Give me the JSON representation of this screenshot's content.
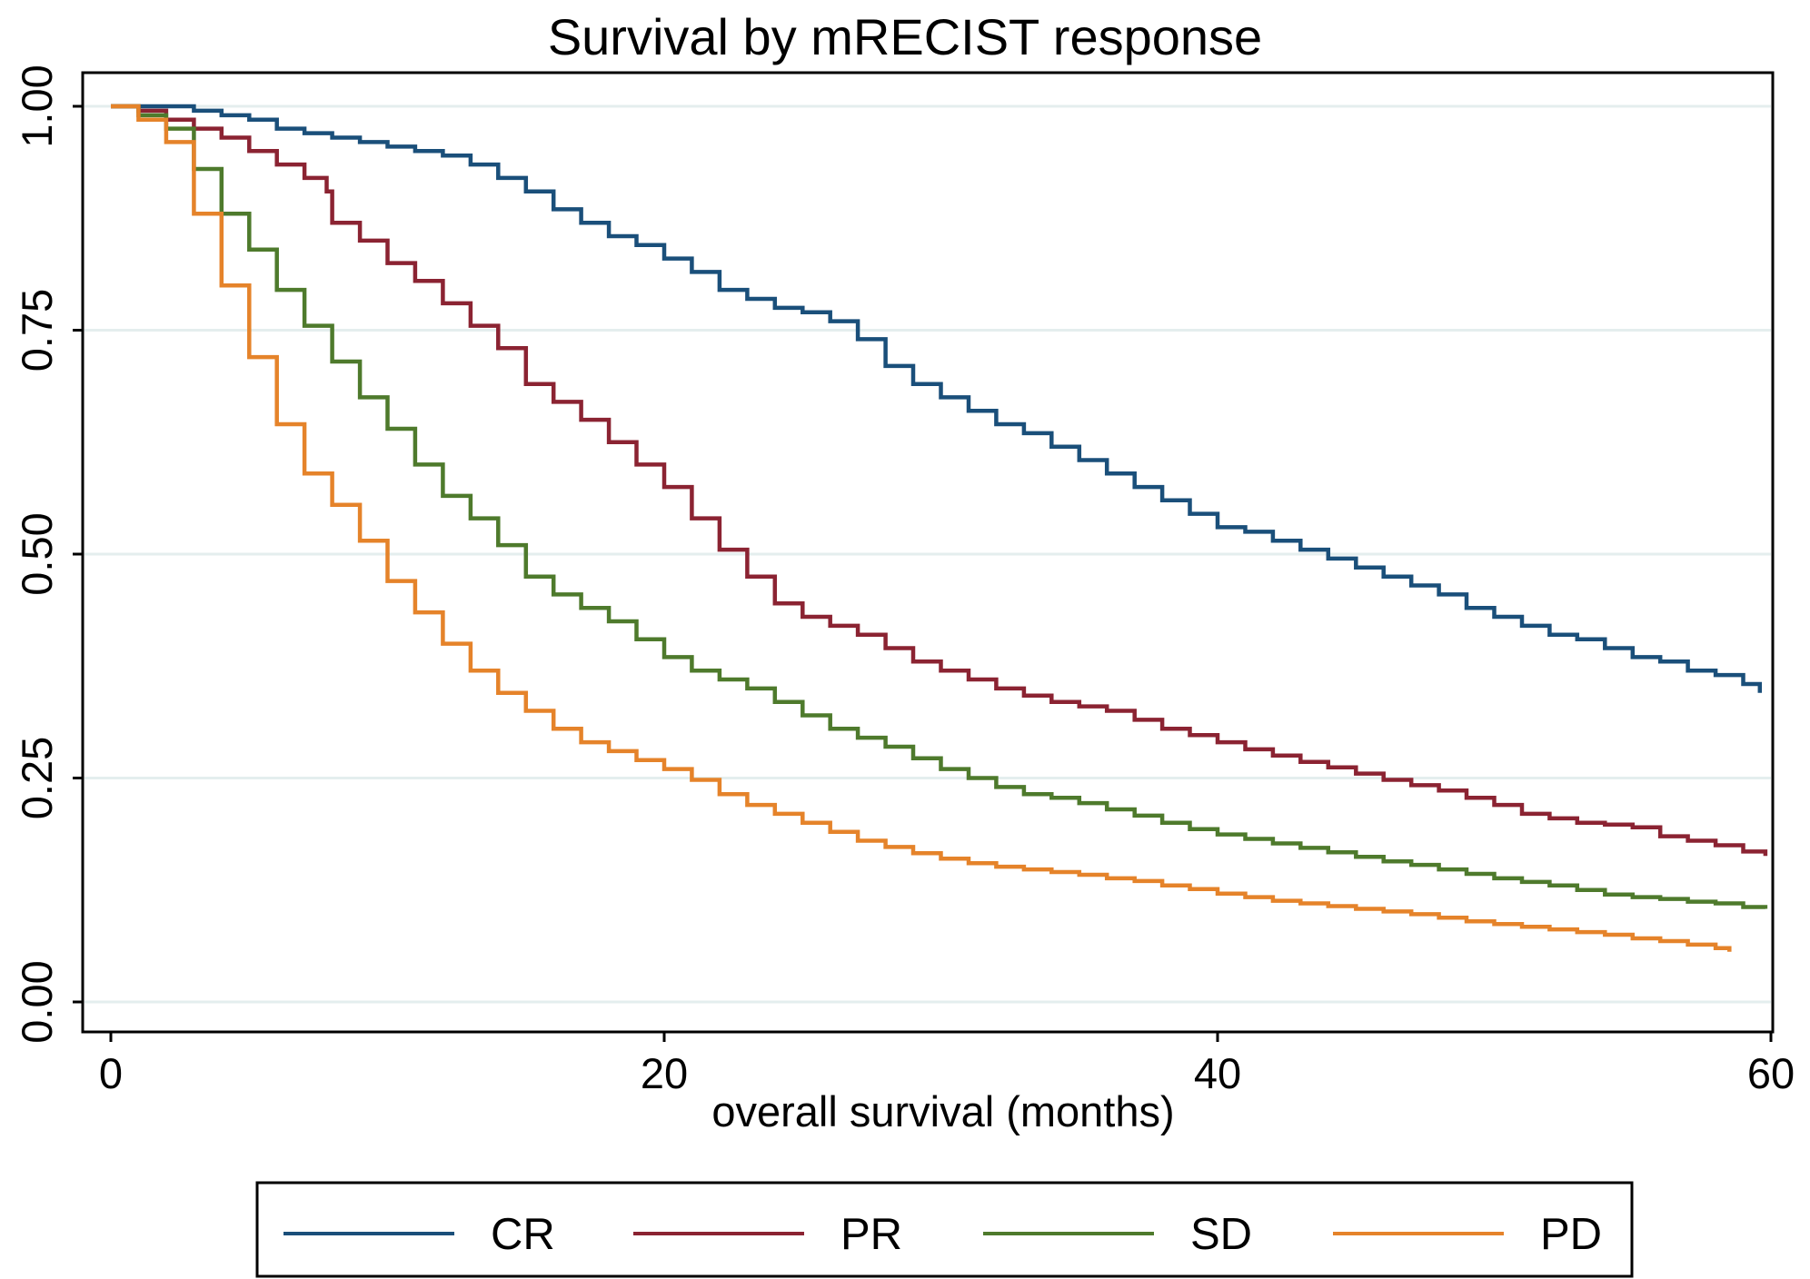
{
  "chart_data": {
    "type": "line",
    "title": "Survival by mRECIST response",
    "xlabel": "overall survival (months)",
    "ylabel": "",
    "xlim": [
      0,
      60
    ],
    "ylim": [
      0,
      1
    ],
    "xticks": [
      0,
      20,
      40,
      60
    ],
    "xtick_labels": [
      "0",
      "20",
      "40",
      "60"
    ],
    "yticks": [
      0,
      0.25,
      0.5,
      0.75,
      1
    ],
    "ytick_labels": [
      "0.00",
      "0.25",
      "0.50",
      "0.75",
      "1.00"
    ],
    "grid": true,
    "legend_position": "bottom",
    "series": [
      {
        "name": "CR",
        "color": "#1a4f7a",
        "x": [
          0,
          1,
          2,
          3,
          4,
          5,
          6,
          7,
          8,
          9,
          10,
          11,
          12,
          13,
          14,
          15,
          16,
          17,
          18,
          19,
          20,
          21,
          22,
          23,
          24,
          25,
          26,
          27,
          28,
          29,
          30,
          31,
          32,
          33,
          34,
          35,
          36,
          37,
          38,
          39,
          40,
          41,
          42,
          43,
          44,
          45,
          46,
          47,
          48,
          49,
          50,
          51,
          52,
          53,
          54,
          55,
          56,
          57,
          58,
          59,
          59.6
        ],
        "y": [
          1.0,
          1.0,
          1.0,
          0.995,
          0.99,
          0.985,
          0.975,
          0.97,
          0.965,
          0.96,
          0.955,
          0.95,
          0.945,
          0.935,
          0.92,
          0.905,
          0.885,
          0.87,
          0.855,
          0.845,
          0.83,
          0.815,
          0.795,
          0.785,
          0.775,
          0.77,
          0.76,
          0.74,
          0.71,
          0.69,
          0.675,
          0.66,
          0.645,
          0.635,
          0.62,
          0.605,
          0.59,
          0.575,
          0.56,
          0.545,
          0.53,
          0.525,
          0.515,
          0.505,
          0.495,
          0.485,
          0.475,
          0.465,
          0.455,
          0.44,
          0.43,
          0.42,
          0.41,
          0.405,
          0.395,
          0.385,
          0.38,
          0.37,
          0.365,
          0.355,
          0.345
        ]
      },
      {
        "name": "PR",
        "color": "#8b2332",
        "x": [
          0,
          1,
          2,
          3,
          4,
          5,
          6,
          7,
          7.8,
          8,
          9,
          10,
          11,
          12,
          13,
          14,
          15,
          16,
          17,
          18,
          19,
          20,
          21,
          22,
          23,
          24,
          25,
          26,
          27,
          28,
          29,
          30,
          31,
          32,
          33,
          34,
          35,
          36,
          37,
          38,
          39,
          40,
          41,
          42,
          43,
          44,
          45,
          46,
          47,
          48,
          49,
          50,
          51,
          52,
          53,
          54,
          55,
          56,
          57,
          58,
          59,
          59.8
        ],
        "y": [
          1.0,
          0.995,
          0.985,
          0.975,
          0.965,
          0.95,
          0.935,
          0.92,
          0.905,
          0.87,
          0.85,
          0.825,
          0.805,
          0.78,
          0.755,
          0.73,
          0.69,
          0.67,
          0.65,
          0.625,
          0.6,
          0.575,
          0.54,
          0.505,
          0.475,
          0.445,
          0.43,
          0.42,
          0.41,
          0.395,
          0.38,
          0.37,
          0.36,
          0.35,
          0.342,
          0.335,
          0.33,
          0.325,
          0.315,
          0.305,
          0.298,
          0.29,
          0.282,
          0.275,
          0.268,
          0.262,
          0.255,
          0.248,
          0.242,
          0.236,
          0.228,
          0.22,
          0.21,
          0.205,
          0.2,
          0.198,
          0.195,
          0.185,
          0.18,
          0.175,
          0.168,
          0.163
        ]
      },
      {
        "name": "SD",
        "color": "#4e7a2c",
        "x": [
          0,
          1,
          2,
          3,
          4,
          5,
          6,
          7,
          8,
          9,
          10,
          11,
          12,
          13,
          14,
          15,
          16,
          17,
          18,
          19,
          20,
          21,
          22,
          23,
          24,
          25,
          26,
          27,
          28,
          29,
          30,
          31,
          32,
          33,
          34,
          35,
          36,
          37,
          38,
          39,
          40,
          41,
          42,
          43,
          44,
          45,
          46,
          47,
          48,
          49,
          50,
          51,
          52,
          53,
          54,
          55,
          56,
          57,
          58,
          59,
          59.8
        ],
        "y": [
          1.0,
          0.99,
          0.975,
          0.93,
          0.88,
          0.84,
          0.795,
          0.755,
          0.715,
          0.675,
          0.64,
          0.6,
          0.565,
          0.54,
          0.51,
          0.475,
          0.455,
          0.44,
          0.425,
          0.405,
          0.385,
          0.37,
          0.36,
          0.35,
          0.335,
          0.32,
          0.305,
          0.295,
          0.285,
          0.272,
          0.26,
          0.25,
          0.24,
          0.232,
          0.228,
          0.222,
          0.215,
          0.208,
          0.2,
          0.193,
          0.187,
          0.182,
          0.177,
          0.172,
          0.167,
          0.162,
          0.157,
          0.153,
          0.148,
          0.143,
          0.138,
          0.134,
          0.13,
          0.125,
          0.12,
          0.117,
          0.115,
          0.112,
          0.11,
          0.106,
          0.104
        ]
      },
      {
        "name": "PD",
        "color": "#e5832a",
        "x": [
          0,
          1,
          2,
          3,
          4,
          5,
          6,
          7,
          8,
          9,
          10,
          11,
          12,
          13,
          14,
          15,
          16,
          17,
          18,
          19,
          20,
          21,
          22,
          23,
          24,
          25,
          26,
          27,
          28,
          29,
          30,
          31,
          32,
          33,
          34,
          35,
          36,
          37,
          38,
          39,
          40,
          41,
          42,
          43,
          44,
          45,
          46,
          47,
          48,
          49,
          50,
          51,
          52,
          53,
          54,
          55,
          56,
          57,
          58,
          58.5
        ],
        "y": [
          1.0,
          0.985,
          0.96,
          0.88,
          0.8,
          0.72,
          0.645,
          0.59,
          0.555,
          0.515,
          0.47,
          0.435,
          0.4,
          0.37,
          0.345,
          0.325,
          0.305,
          0.29,
          0.28,
          0.27,
          0.26,
          0.248,
          0.232,
          0.22,
          0.21,
          0.2,
          0.19,
          0.18,
          0.173,
          0.166,
          0.16,
          0.155,
          0.151,
          0.148,
          0.145,
          0.142,
          0.138,
          0.135,
          0.13,
          0.126,
          0.121,
          0.117,
          0.113,
          0.11,
          0.107,
          0.104,
          0.101,
          0.098,
          0.094,
          0.09,
          0.087,
          0.084,
          0.081,
          0.078,
          0.075,
          0.071,
          0.068,
          0.064,
          0.06,
          0.056
        ]
      }
    ]
  }
}
